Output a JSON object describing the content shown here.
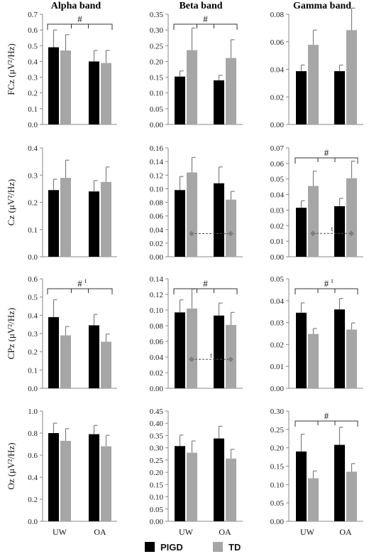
{
  "columns": [
    "Alpha band",
    "Beta band",
    "Gamma band"
  ],
  "x_categories": [
    "UW",
    "OA"
  ],
  "legend": [
    {
      "name": "PIGD",
      "color": "#000000"
    },
    {
      "name": "TD",
      "color": "#a6a6a6"
    }
  ],
  "colors": {
    "PIGD": "#000000",
    "TD": "#a6a6a6",
    "error_bar": "#7f7f7f",
    "marker": "#7f7f7f"
  },
  "chart_data": [
    {
      "type": "bar",
      "row": "FCz",
      "column": "Alpha band",
      "ylabel": "FCz (μV²/Hz)",
      "ylim": [
        0,
        0.7
      ],
      "yticks": [
        "0.0",
        "0.1",
        "0.2",
        "0.3",
        "0.4",
        "0.5",
        "0.6",
        "0.7"
      ],
      "categories": [
        "UW",
        "OA"
      ],
      "series": [
        {
          "name": "PIGD",
          "values": [
            0.49,
            0.4
          ],
          "errors": [
            0.11,
            0.07
          ]
        },
        {
          "name": "TD",
          "values": [
            0.47,
            0.39
          ],
          "errors": [
            0.1,
            0.08
          ]
        }
      ],
      "annotation": {
        "type": "bracket",
        "label": "#",
        "sup": ""
      }
    },
    {
      "type": "bar",
      "row": "FCz",
      "column": "Beta band",
      "ylabel": "",
      "ylim": [
        0,
        0.35
      ],
      "yticks": [
        "0.00",
        "0.05",
        "0.10",
        "0.15",
        "0.20",
        "0.25",
        "0.30",
        "0.35"
      ],
      "categories": [
        "UW",
        "OA"
      ],
      "series": [
        {
          "name": "PIGD",
          "values": [
            0.152,
            0.14
          ],
          "errors": [
            0.018,
            0.016
          ]
        },
        {
          "name": "TD",
          "values": [
            0.236,
            0.211
          ],
          "errors": [
            0.07,
            0.058
          ]
        }
      ],
      "annotation": {
        "type": "bracket",
        "label": "#",
        "sup": ""
      }
    },
    {
      "type": "bar",
      "row": "FCz",
      "column": "Gamma band",
      "ylabel": "",
      "ylim": [
        0,
        0.09
      ],
      "yticks": [
        "0.00",
        "0.02",
        "0.04",
        "0.06",
        "0.08"
      ],
      "categories": [
        "UW",
        "OA"
      ],
      "series": [
        {
          "name": "PIGD",
          "values": [
            0.0435,
            0.0435
          ],
          "errors": [
            0.005,
            0.005
          ]
        },
        {
          "name": "TD",
          "values": [
            0.065,
            0.077
          ],
          "errors": [
            0.012,
            0.018
          ]
        }
      ],
      "annotation": null
    },
    {
      "type": "bar",
      "row": "Cz",
      "column": "Alpha band",
      "ylabel": "Cz (μV²/Hz)",
      "ylim": [
        0,
        0.4
      ],
      "yticks": [
        "0.0",
        "0.1",
        "0.2",
        "0.3",
        "0.4"
      ],
      "categories": [
        "UW",
        "OA"
      ],
      "series": [
        {
          "name": "PIGD",
          "values": [
            0.245,
            0.24
          ],
          "errors": [
            0.04,
            0.04
          ]
        },
        {
          "name": "TD",
          "values": [
            0.29,
            0.275
          ],
          "errors": [
            0.065,
            0.055
          ]
        }
      ],
      "annotation": null
    },
    {
      "type": "bar",
      "row": "Cz",
      "column": "Beta band",
      "ylabel": "",
      "ylim": [
        0,
        0.16
      ],
      "yticks": [
        "0.00",
        "0.02",
        "0.04",
        "0.06",
        "0.08",
        "0.10",
        "0.12",
        "0.14",
        "0.16"
      ],
      "categories": [
        "UW",
        "OA"
      ],
      "series": [
        {
          "name": "PIGD",
          "values": [
            0.098,
            0.108
          ],
          "errors": [
            0.02,
            0.024
          ]
        },
        {
          "name": "TD",
          "values": [
            0.124,
            0.084
          ],
          "errors": [
            0.022,
            0.012
          ]
        }
      ],
      "annotation": {
        "type": "dashed",
        "label": "",
        "y": 0.034
      }
    },
    {
      "type": "bar",
      "row": "Cz",
      "column": "Gamma band",
      "ylabel": "",
      "ylim": [
        0,
        0.07
      ],
      "yticks": [
        "0.00",
        "0.01",
        "0.02",
        "0.03",
        "0.04",
        "0.05",
        "0.06",
        "0.07"
      ],
      "categories": [
        "UW",
        "OA"
      ],
      "series": [
        {
          "name": "PIGD",
          "values": [
            0.0315,
            0.0325
          ],
          "errors": [
            0.0045,
            0.005
          ]
        },
        {
          "name": "TD",
          "values": [
            0.0455,
            0.0505
          ],
          "errors": [
            0.0095,
            0.011
          ]
        }
      ],
      "annotation": {
        "type": "bracket+dashed",
        "label": "#",
        "sup": "",
        "dashed_label": "t",
        "y": 0.015
      }
    },
    {
      "type": "bar",
      "row": "CPz",
      "column": "Alpha band",
      "ylabel": "CPz (μV²/Hz)",
      "ylim": [
        0,
        0.6
      ],
      "yticks": [
        "0.0",
        "0.1",
        "0.2",
        "0.3",
        "0.4",
        "0.5",
        "0.6"
      ],
      "categories": [
        "UW",
        "OA"
      ],
      "series": [
        {
          "name": "PIGD",
          "values": [
            0.39,
            0.345
          ],
          "errors": [
            0.095,
            0.06
          ]
        },
        {
          "name": "TD",
          "values": [
            0.29,
            0.255
          ],
          "errors": [
            0.048,
            0.042
          ]
        }
      ],
      "annotation": {
        "type": "bracket",
        "label": "#",
        "sup": "t"
      }
    },
    {
      "type": "bar",
      "row": "CPz",
      "column": "Beta band",
      "ylabel": "",
      "ylim": [
        0,
        0.14
      ],
      "yticks": [
        "0.00",
        "0.02",
        "0.04",
        "0.06",
        "0.08",
        "0.10",
        "0.12",
        "0.14"
      ],
      "categories": [
        "UW",
        "OA"
      ],
      "series": [
        {
          "name": "PIGD",
          "values": [
            0.097,
            0.093
          ],
          "errors": [
            0.016,
            0.016
          ]
        },
        {
          "name": "TD",
          "values": [
            0.102,
            0.081
          ],
          "errors": [
            0.025,
            0.016
          ]
        }
      ],
      "annotation": {
        "type": "bracket+dashed",
        "label": "#",
        "sup": "",
        "dashed_label": "t",
        "y": 0.037
      }
    },
    {
      "type": "bar",
      "row": "CPz",
      "column": "Gamma band",
      "ylabel": "",
      "ylim": [
        0,
        0.05
      ],
      "yticks": [
        "0.00",
        "0.01",
        "0.02",
        "0.03",
        "0.04",
        "0.05"
      ],
      "categories": [
        "UW",
        "OA"
      ],
      "series": [
        {
          "name": "PIGD",
          "values": [
            0.0345,
            0.036
          ],
          "errors": [
            0.0045,
            0.005
          ]
        },
        {
          "name": "TD",
          "values": [
            0.0248,
            0.0268
          ],
          "errors": [
            0.0025,
            0.003
          ]
        }
      ],
      "annotation": {
        "type": "bracket",
        "label": "#",
        "sup": "t"
      }
    },
    {
      "type": "bar",
      "row": "Oz",
      "column": "Alpha band",
      "ylabel": "Oz (μV²/Hz)",
      "ylim": [
        0,
        1.0
      ],
      "yticks": [
        "0.0",
        "0.2",
        "0.4",
        "0.6",
        "0.8",
        "1.0"
      ],
      "categories": [
        "UW",
        "OA"
      ],
      "series": [
        {
          "name": "PIGD",
          "values": [
            0.8,
            0.79
          ],
          "errors": [
            0.09,
            0.08
          ]
        },
        {
          "name": "TD",
          "values": [
            0.73,
            0.68
          ],
          "errors": [
            0.11,
            0.1
          ]
        }
      ],
      "annotation": null
    },
    {
      "type": "bar",
      "row": "Oz",
      "column": "Beta band",
      "ylabel": "",
      "ylim": [
        0,
        0.45
      ],
      "yticks": [
        "0.00",
        "0.05",
        "0.10",
        "0.15",
        "0.20",
        "0.25",
        "0.30",
        "0.35",
        "0.40",
        "0.45"
      ],
      "categories": [
        "UW",
        "OA"
      ],
      "series": [
        {
          "name": "PIGD",
          "values": [
            0.307,
            0.338
          ],
          "errors": [
            0.045,
            0.05
          ]
        },
        {
          "name": "TD",
          "values": [
            0.28,
            0.256
          ],
          "errors": [
            0.048,
            0.038
          ]
        }
      ],
      "annotation": null
    },
    {
      "type": "bar",
      "row": "Oz",
      "column": "Gamma band",
      "ylabel": "",
      "ylim": [
        0,
        0.3
      ],
      "yticks": [
        "0.00",
        "0.05",
        "0.10",
        "0.15",
        "0.20",
        "0.25",
        "0.30"
      ],
      "categories": [
        "UW",
        "OA"
      ],
      "series": [
        {
          "name": "PIGD",
          "values": [
            0.19,
            0.208
          ],
          "errors": [
            0.047,
            0.048
          ]
        },
        {
          "name": "TD",
          "values": [
            0.117,
            0.135
          ],
          "errors": [
            0.02,
            0.022
          ]
        }
      ],
      "annotation": {
        "type": "bracket",
        "label": "#",
        "sup": ""
      }
    }
  ]
}
